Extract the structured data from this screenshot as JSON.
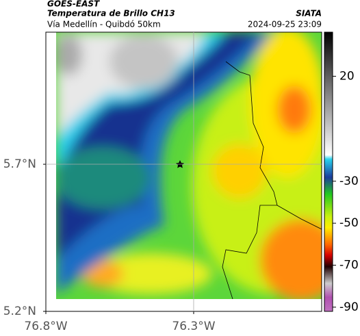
{
  "header": {
    "source": "GOES-EAST",
    "title": "Temperatura de Brillo CH13",
    "subtitle": "Vía Medellín - Quibdó 50km",
    "agency": "SIATA",
    "datetime": "2024-09-25 23:09"
  },
  "map": {
    "lonlim": [
      -76.8,
      -75.867
    ],
    "latlim": [
      5.2,
      6.149
    ],
    "lonticks": [
      {
        "value": -76.8,
        "label": "76.8°W"
      },
      {
        "value": -76.3,
        "label": "76.3°W"
      }
    ],
    "latticks": [
      {
        "value": 5.7,
        "label": "5.7°N"
      },
      {
        "value": 5.2,
        "label": "5.2°N"
      }
    ],
    "grid": true
  },
  "colorbar": {
    "lim": [
      -92,
      41
    ],
    "ticks": [
      20,
      -30,
      -50,
      -70,
      -90
    ]
  }
}
